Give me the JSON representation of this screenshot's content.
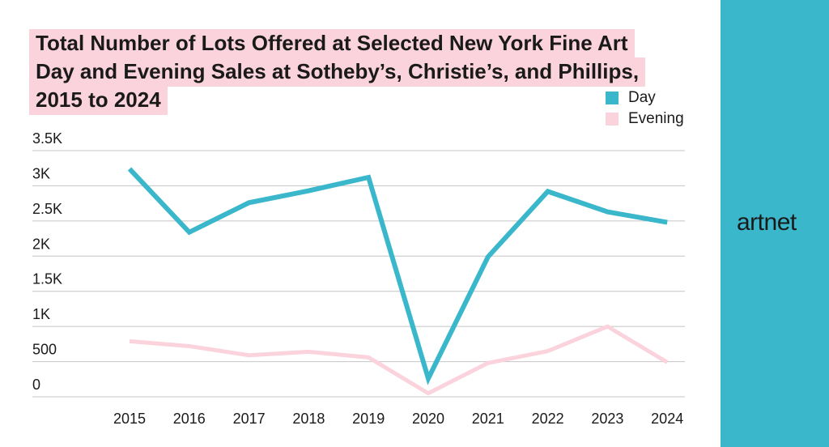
{
  "brand": {
    "name": "artnet"
  },
  "colors": {
    "sidebar": "#3bb7cc",
    "day": "#3bb7cc",
    "evening": "#fbd3dc",
    "title_highlight": "#fbd3dc",
    "grid": "#c4c4c4",
    "text": "#1a1a1a"
  },
  "chart_data": {
    "type": "line",
    "title": "Total Number of Lots Offered at Selected New York Fine Art Day and Evening Sales at Sotheby’s, Christie’s, and Phillips, 2015 to 2024",
    "categories": [
      "2015",
      "2016",
      "2017",
      "2018",
      "2019",
      "2020",
      "2021",
      "2022",
      "2023",
      "2024"
    ],
    "series": [
      {
        "name": "Day",
        "values": [
          3240,
          2340,
          2760,
          2930,
          3120,
          260,
          1990,
          2920,
          2630,
          2480
        ]
      },
      {
        "name": "Evening",
        "values": [
          790,
          720,
          590,
          640,
          560,
          50,
          480,
          650,
          1000,
          490
        ]
      }
    ],
    "y_ticks": [
      {
        "value": 0,
        "label": "0"
      },
      {
        "value": 500,
        "label": "500"
      },
      {
        "value": 1000,
        "label": "1K"
      },
      {
        "value": 1500,
        "label": "1.5K"
      },
      {
        "value": 2000,
        "label": "2K"
      },
      {
        "value": 2500,
        "label": "2.5K"
      },
      {
        "value": 3000,
        "label": "3K"
      },
      {
        "value": 3500,
        "label": "3.5K"
      }
    ],
    "ylim": [
      0,
      3500
    ],
    "grid": true,
    "legend_position": "top-right"
  }
}
